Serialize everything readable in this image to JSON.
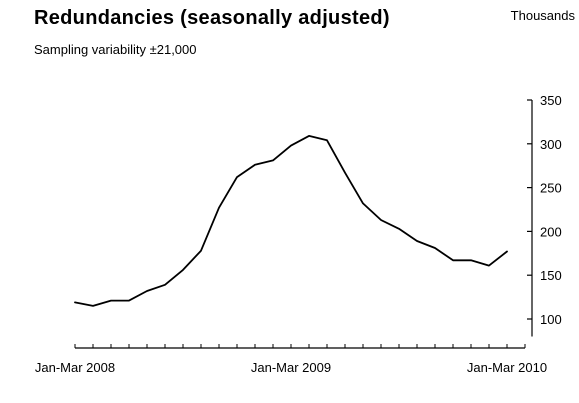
{
  "chart_data": {
    "type": "line",
    "title": "Redundancies (seasonally adjusted)",
    "subtitle": "Sampling variability ±21,000",
    "ylabel": "Thousands",
    "xlabel": "",
    "ylim": [
      80,
      350
    ],
    "y_ticks": [
      100,
      150,
      200,
      250,
      300,
      350
    ],
    "x_tick_labels": [
      {
        "index": 0,
        "label": "Jan-Mar 2008"
      },
      {
        "index": 12,
        "label": "Jan-Mar 2009"
      },
      {
        "index": 24,
        "label": "Jan-Mar 2010"
      }
    ],
    "x_tick_count": 26,
    "grid": false,
    "legend": "none",
    "line_color": "#000000",
    "series": [
      {
        "values": [
          119,
          115,
          121,
          121,
          132,
          139,
          156,
          178,
          227,
          262,
          276,
          281,
          298,
          309,
          304,
          267,
          232,
          213,
          203,
          189,
          181,
          167,
          167,
          161,
          177
        ]
      }
    ]
  }
}
